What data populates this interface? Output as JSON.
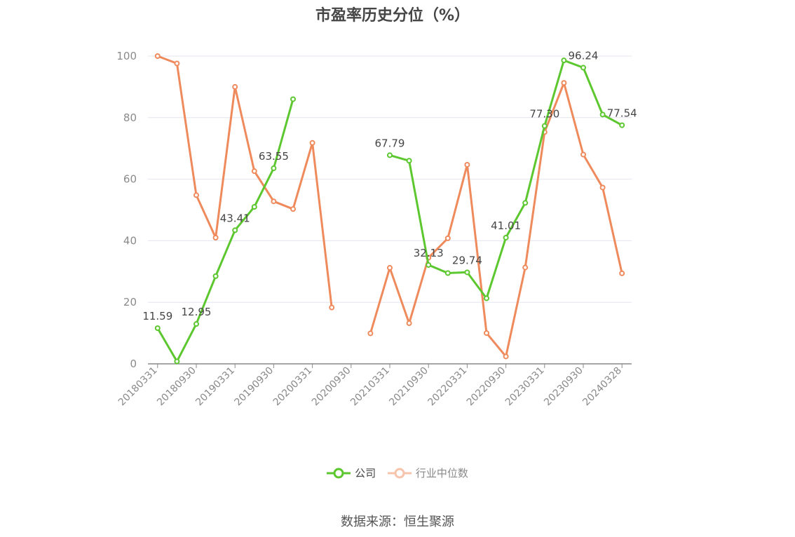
{
  "source_note": "数据来源：恒生聚源",
  "colors": {
    "company": "#5cc72f",
    "industry": "#ee8a5c",
    "grid": "#e3e6ef",
    "axis": "#8a8a8a"
  },
  "chart_data": {
    "type": "line",
    "title": "市盈率历史分位（%）",
    "ylim": [
      0,
      100
    ],
    "yticks": [
      0,
      20,
      40,
      60,
      80,
      100
    ],
    "grid": true,
    "legend_position": "bottom",
    "x": [
      "20180331",
      "20180630",
      "20180930",
      "20181231",
      "20190331",
      "20190630",
      "20190930",
      "20191231",
      "20200331",
      "20200630",
      "20200930",
      "20201231",
      "20210331",
      "20210630",
      "20210930",
      "20211231",
      "20220331",
      "20220630",
      "20220930",
      "20221231",
      "20230331",
      "20230630",
      "20230930",
      "20231231",
      "20240328"
    ],
    "xtick_labels": [
      "20180331",
      "20180930",
      "20190331",
      "20190930",
      "20200331",
      "20200930",
      "20210331",
      "20210930",
      "20220331",
      "20220930",
      "20230331",
      "20230930",
      "20240328"
    ],
    "series": [
      {
        "name": "公司",
        "values": [
          11.59,
          0.8,
          12.95,
          28.5,
          43.41,
          51.0,
          63.55,
          86.0,
          null,
          null,
          null,
          null,
          67.79,
          66.0,
          32.13,
          29.5,
          29.74,
          21.3,
          41.01,
          52.3,
          77.3,
          98.6,
          96.24,
          81.0,
          77.54
        ],
        "labels": [
          "11.59",
          "",
          "12.95",
          "",
          "43.41",
          "",
          "63.55",
          "",
          "",
          "",
          "",
          "",
          "67.79",
          "",
          "32.13",
          "",
          "29.74",
          "",
          "41.01",
          "",
          "77.30",
          "",
          "96.24",
          "",
          "77.54"
        ]
      },
      {
        "name": "行业中位数",
        "values": [
          100.0,
          97.6,
          54.8,
          41.0,
          90.0,
          62.6,
          52.8,
          50.3,
          71.8,
          18.3,
          null,
          9.9,
          31.2,
          13.2,
          34.5,
          40.8,
          64.7,
          10.0,
          2.4,
          31.3,
          75.3,
          91.3,
          68.0,
          57.3,
          29.4
        ],
        "labels": []
      }
    ]
  }
}
